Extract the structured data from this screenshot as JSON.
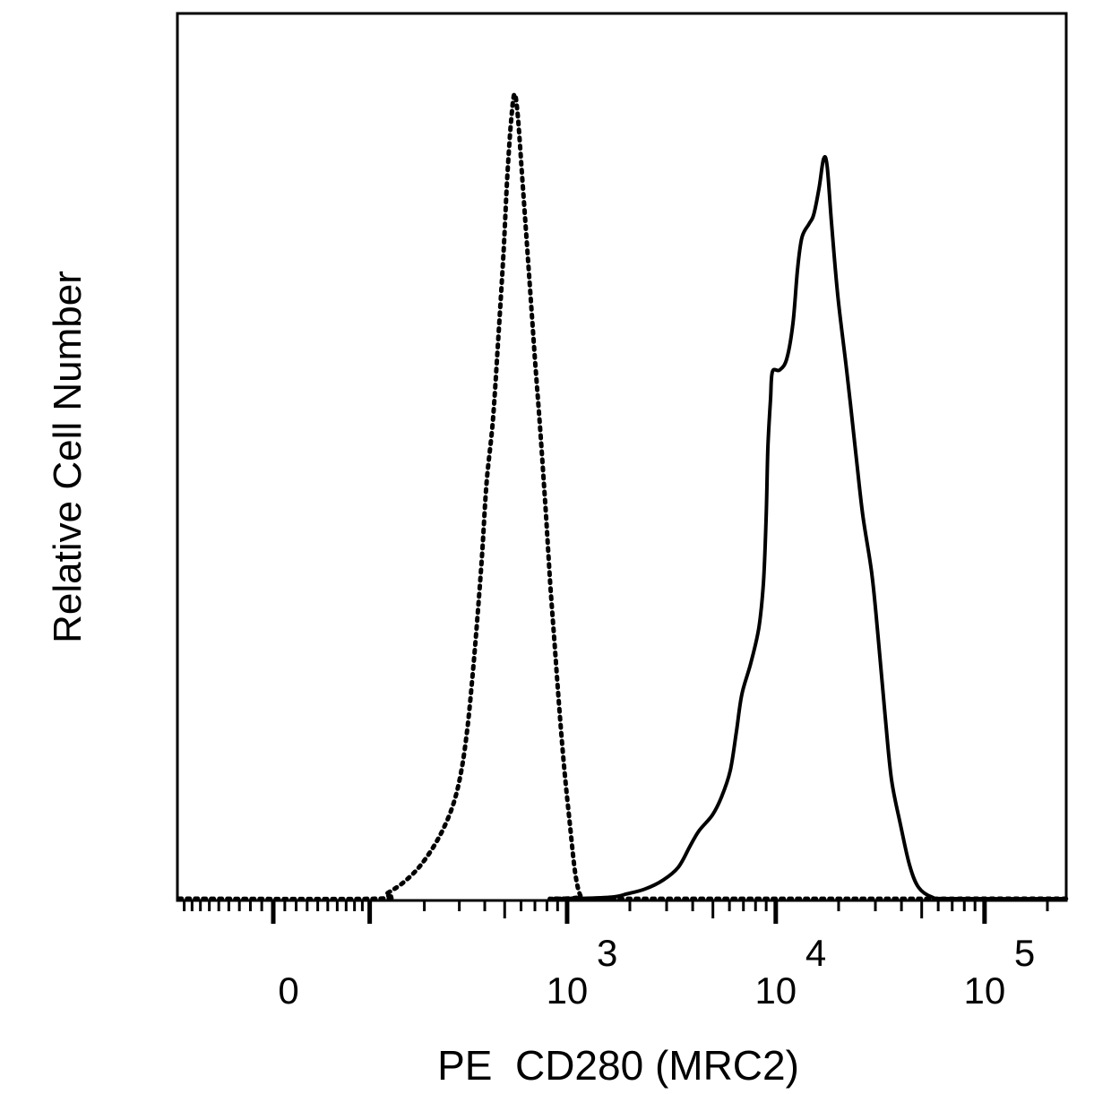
{
  "chart_data": {
    "type": "line",
    "title": "",
    "xlabel": "PE  CD280 (MRC2)",
    "ylabel": "Relative Cell Number",
    "x_scale": "logicle (biexponential)",
    "xlim": [
      -100,
      250000
    ],
    "ylim": [
      0,
      100
    ],
    "grid": false,
    "legend": "none",
    "x_tick_labels": [
      {
        "value": 0,
        "base": "0",
        "exp": ""
      },
      {
        "value": 1000,
        "base": "10",
        "exp": "3"
      },
      {
        "value": 10000,
        "base": "10",
        "exp": "4"
      },
      {
        "value": 100000,
        "base": "10",
        "exp": "5"
      }
    ],
    "series": [
      {
        "style": "dotted",
        "color": "#000000",
        "x": [
          -97,
          110,
          125,
          155,
          192,
          237,
          278,
          307,
          330,
          350,
          368,
          388,
          408,
          438,
          465,
          494,
          514,
          535,
          557,
          579,
          609,
          653,
          700,
          743,
          789,
          829,
          872,
          917,
          971,
          1032,
          1095,
          1162,
          1245,
          250000
        ],
        "y": [
          0,
          0,
          0.6,
          2.0,
          4.2,
          7.6,
          11.5,
          15.9,
          21.5,
          28.2,
          34.9,
          42.7,
          51.6,
          59.4,
          69.4,
          80.5,
          89.4,
          96.1,
          100,
          97.2,
          89.4,
          78.3,
          67.1,
          58.2,
          48.2,
          39.3,
          31.5,
          23.7,
          15.9,
          9.2,
          3.1,
          0.3,
          0,
          0
        ]
      },
      {
        "style": "solid",
        "color": "#000000",
        "x": [
          1073,
          1640,
          1942,
          2365,
          2884,
          3410,
          3880,
          4280,
          4970,
          5490,
          6050,
          6490,
          6880,
          7600,
          8300,
          8730,
          8990,
          9170,
          9440,
          9640,
          10430,
          11290,
          12100,
          12720,
          13350,
          14460,
          15190,
          16120,
          16930,
          17620,
          18500,
          19830,
          21900,
          24150,
          26100,
          28850,
          30900,
          33450,
          35850,
          39570,
          43700,
          48300,
          56000,
          68200,
          245700
        ],
        "y": [
          0,
          0.2,
          0.6,
          1.2,
          2.3,
          3.9,
          6.5,
          8.4,
          10.4,
          12.6,
          15.9,
          20.9,
          25.4,
          29.3,
          33.7,
          39.3,
          47.1,
          56.0,
          62.1,
          65.5,
          65.7,
          67.1,
          71.6,
          78.3,
          82.2,
          83.9,
          85.0,
          88.3,
          91.9,
          91.1,
          83.9,
          74.9,
          65.5,
          55.5,
          47.7,
          40.4,
          32.6,
          22.6,
          14.8,
          9.2,
          4.2,
          1.4,
          0.2,
          0,
          0
        ]
      }
    ]
  }
}
